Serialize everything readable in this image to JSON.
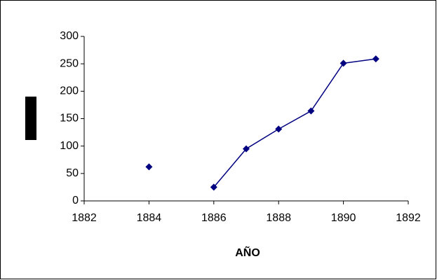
{
  "chart_data": {
    "type": "line",
    "x_label": "AÑO",
    "x": [
      1884,
      1885,
      1886,
      1887,
      1888,
      1889,
      1890,
      1891
    ],
    "series": [
      {
        "color": "#000080",
        "values": [
          62,
          null,
          25,
          95,
          131,
          164,
          251,
          259
        ]
      }
    ],
    "xlim": [
      1882,
      1892
    ],
    "xticks": [
      1882,
      1884,
      1886,
      1888,
      1890,
      1892
    ],
    "ylim": [
      0,
      300
    ],
    "yticks": [
      0,
      50,
      100,
      150,
      200,
      250,
      300
    ],
    "grid": false
  }
}
